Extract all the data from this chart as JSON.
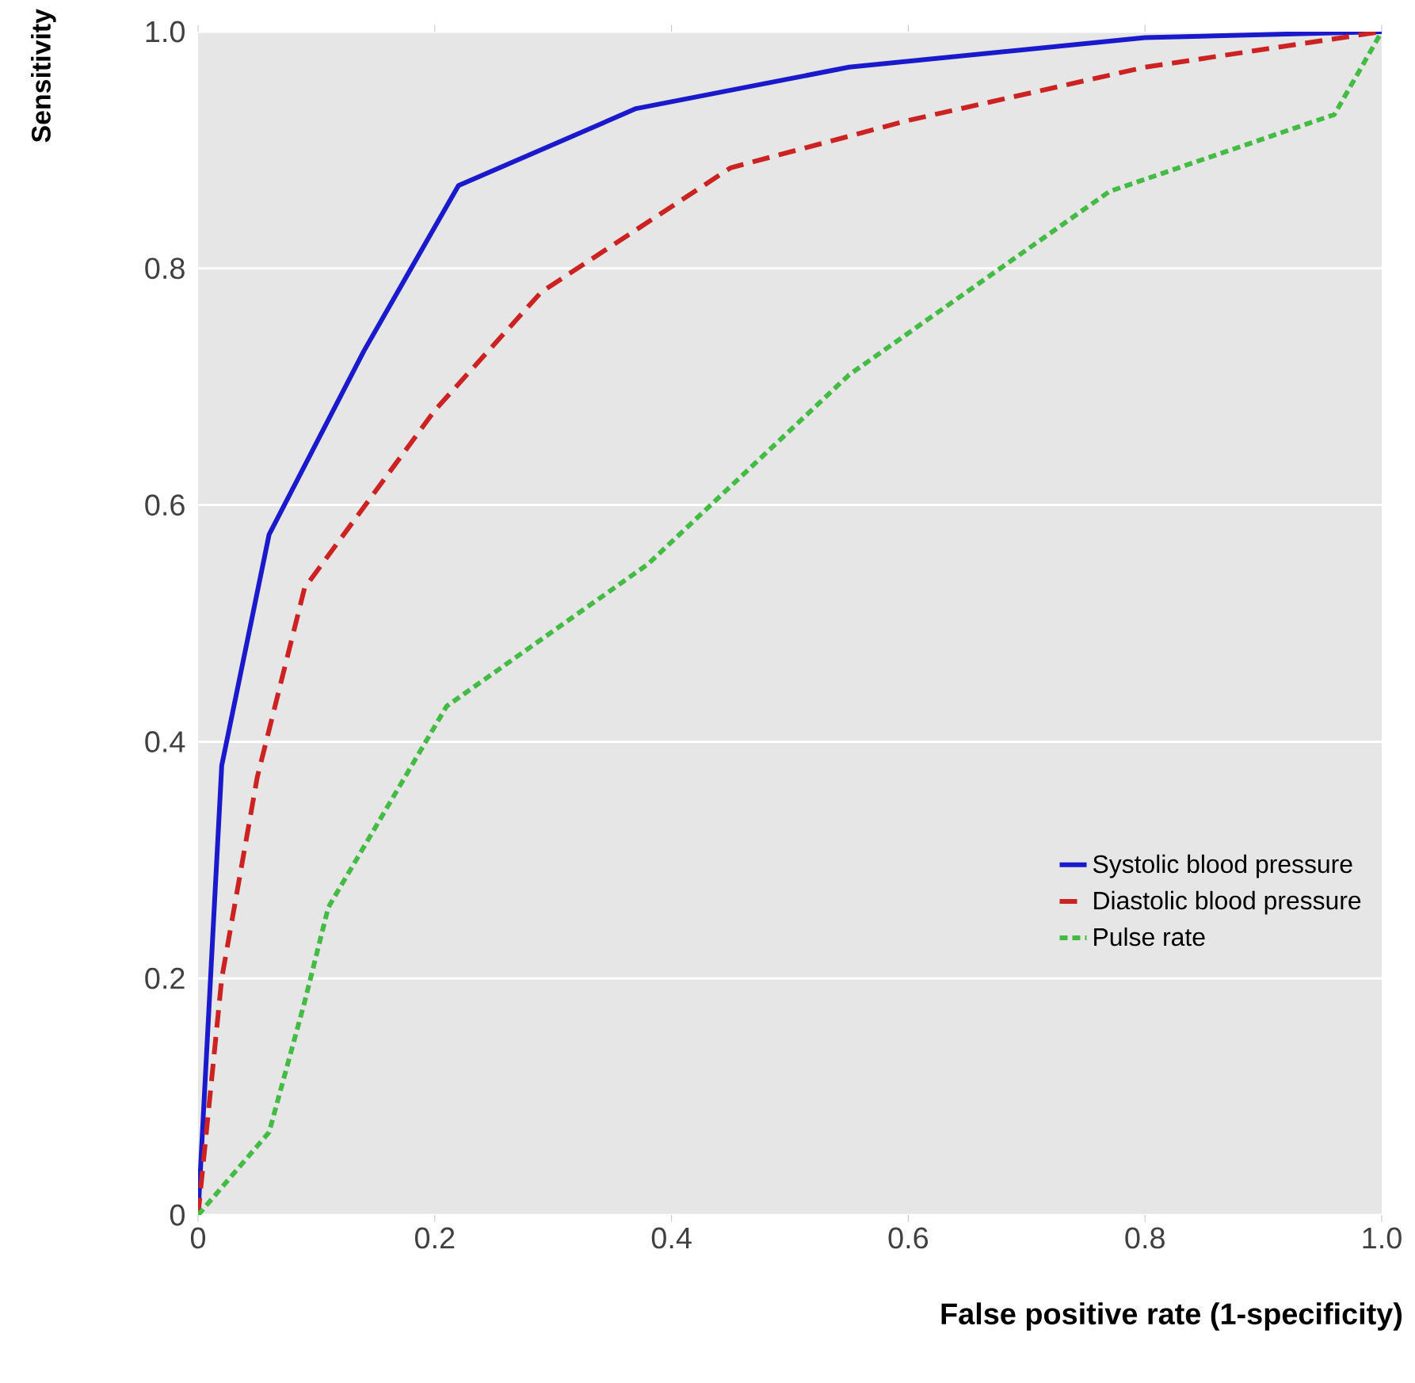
{
  "chart_data": {
    "type": "line",
    "xlabel": "False positive rate (1-specificity)",
    "ylabel": "Sensitivity",
    "xlim": [
      0,
      1
    ],
    "ylim": [
      0,
      1
    ],
    "xticks": [
      0,
      0.2,
      0.4,
      0.6,
      0.8,
      {
        "value": 1,
        "label": "1.0"
      }
    ],
    "yticks": [
      0,
      0.2,
      0.4,
      0.6,
      0.8,
      {
        "value": 1,
        "label": "1.0"
      }
    ],
    "grid": "y",
    "legend": "bottom right",
    "marker": "none",
    "series": [
      {
        "name": "Systolic blood pressure",
        "color": "#1a1acc",
        "line_style": "solid",
        "x": [
          0,
          0.02,
          0.06,
          0.14,
          0.22,
          0.37,
          0.55,
          0.8,
          1
        ],
        "values": [
          0,
          0.38,
          0.575,
          0.73,
          0.87,
          0.935,
          0.97,
          0.995,
          1
        ]
      },
      {
        "name": "Diastolic blood pressure",
        "color": "#cc2222",
        "line_style": "dashed",
        "x": [
          0,
          0.02,
          0.05,
          0.09,
          0.2,
          0.29,
          0.45,
          0.6,
          0.8,
          1
        ],
        "values": [
          0,
          0.2,
          0.37,
          0.53,
          0.68,
          0.78,
          0.885,
          0.925,
          0.97,
          1
        ]
      },
      {
        "name": "Pulse rate",
        "color": "#44bb44",
        "line_style": "dotted",
        "x": [
          0,
          0.06,
          0.09,
          0.11,
          0.21,
          0.38,
          0.55,
          0.77,
          0.96,
          1
        ],
        "values": [
          0,
          0.07,
          0.18,
          0.26,
          0.43,
          0.55,
          0.71,
          0.865,
          0.93,
          1
        ]
      }
    ]
  }
}
